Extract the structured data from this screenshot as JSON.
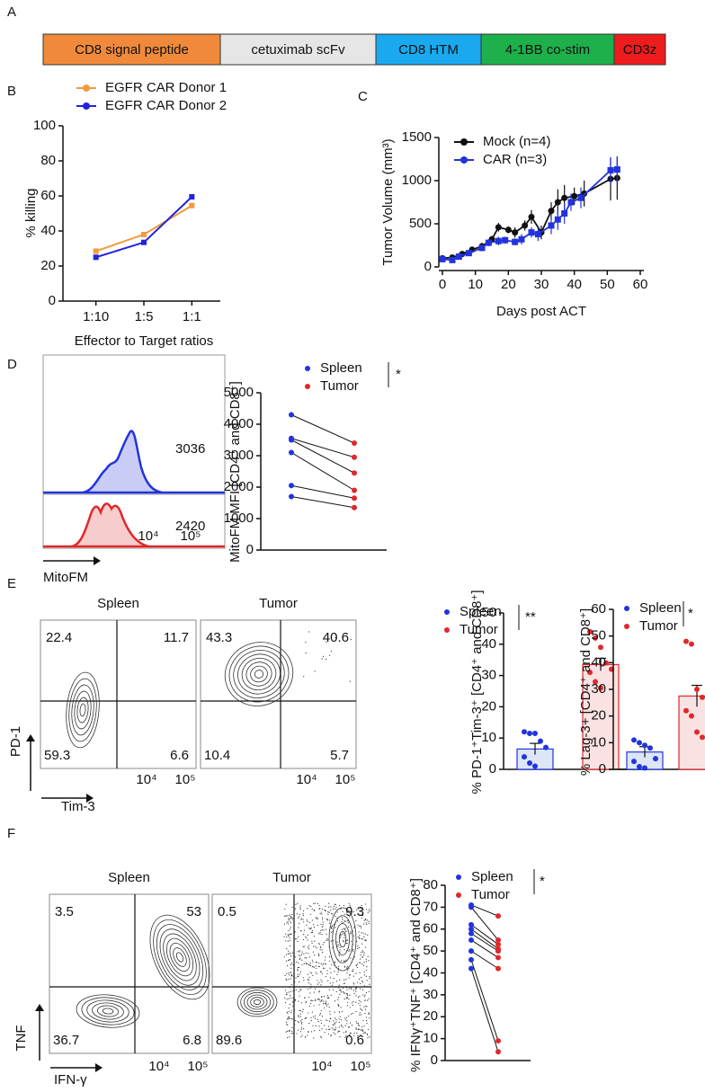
{
  "panel_labels": [
    "A",
    "B",
    "C",
    "D",
    "E",
    "F"
  ],
  "construct": {
    "segments": [
      {
        "label": "CD8 signal peptide",
        "color": "#f08a3a"
      },
      {
        "label": "cetuximab scFv",
        "color": "#e6e6e6"
      },
      {
        "label": "CD8 HTM",
        "color": "#1aa9ee"
      },
      {
        "label": "4-1BB co-stim",
        "color": "#1db04b"
      },
      {
        "label": "CD3z",
        "color": "#ee1c1c"
      }
    ]
  },
  "flow": {
    "histogram": {
      "x_label": "MitoFM",
      "ticks": [
        "10⁴",
        "10⁵"
      ],
      "values": [
        3036,
        2420
      ]
    },
    "pd1_tim3": {
      "y_label": "PD-1",
      "x_label": "Tim-3",
      "ticks": [
        "10⁴",
        "10⁵"
      ],
      "plots": [
        {
          "title": "Spleen",
          "quadrants": [
            22.4,
            11.7,
            59.3,
            6.6
          ]
        },
        {
          "title": "Tumor",
          "quadrants": [
            43.3,
            40.6,
            10.4,
            5.7
          ]
        }
      ]
    },
    "tnf_ifng": {
      "y_label": "TNF",
      "x_label": "IFN-γ",
      "ticks": [
        "10⁴",
        "10⁵"
      ],
      "plots": [
        {
          "title": "Spleen",
          "quadrants": [
            3.5,
            53,
            36.7,
            6.8
          ]
        },
        {
          "title": "Tumor",
          "quadrants": [
            0.5,
            9.3,
            89.6,
            0.6
          ]
        }
      ]
    }
  },
  "chart_data": [
    {
      "type": "line",
      "y_label": "% killing",
      "x_label": "Effector to Target ratios",
      "categories": [
        "1:10",
        "1:5",
        "1:1"
      ],
      "ylim": [
        0,
        100
      ],
      "yticks": [
        0,
        20,
        40,
        60,
        80,
        100
      ],
      "legend": "top",
      "series": [
        {
          "name": "EGFR CAR Donor 1",
          "color": "#f39a3d",
          "values": [
            28.5,
            38,
            54.5
          ]
        },
        {
          "name": "EGFR CAR Donor 2",
          "color": "#2222dd",
          "values": [
            25,
            33.5,
            59.5
          ]
        }
      ]
    },
    {
      "type": "scatterline",
      "y_label": "Tumor Volume (mm³)",
      "x_label": "Days post ACT",
      "xlim": [
        0,
        60
      ],
      "xticks": [
        0,
        10,
        20,
        30,
        40,
        50,
        60
      ],
      "ylim": [
        0,
        1500
      ],
      "yticks": [
        0,
        500,
        1000,
        1500
      ],
      "legend": "upper left",
      "series": [
        {
          "name": "Mock (n=4)",
          "color": "#111111",
          "marker": "circle",
          "x": [
            0,
            3,
            6,
            9,
            12,
            15,
            17,
            20,
            22,
            25,
            27,
            30,
            33,
            35,
            37,
            40,
            43,
            51,
            53
          ],
          "values": [
            100,
            110,
            150,
            200,
            240,
            320,
            460,
            430,
            400,
            480,
            580,
            400,
            650,
            750,
            800,
            820,
            850,
            1020,
            1030
          ],
          "errors": [
            20,
            20,
            30,
            30,
            40,
            40,
            50,
            40,
            60,
            60,
            80,
            80,
            100,
            150,
            150,
            100,
            150,
            250,
            250
          ]
        },
        {
          "name": "CAR (n=3)",
          "color": "#2233dd",
          "marker": "square",
          "x": [
            0,
            3,
            5,
            8,
            12,
            14,
            17,
            19,
            22,
            24,
            27,
            29,
            33,
            35,
            37,
            39,
            42,
            51,
            53
          ],
          "values": [
            90,
            80,
            120,
            160,
            220,
            280,
            300,
            310,
            290,
            320,
            400,
            380,
            480,
            550,
            620,
            750,
            800,
            1120,
            1130
          ],
          "errors": [
            20,
            20,
            30,
            30,
            30,
            40,
            50,
            40,
            40,
            60,
            60,
            80,
            100,
            120,
            120,
            100,
            120,
            150,
            150
          ]
        }
      ]
    },
    {
      "type": "paired",
      "y_label": "MitoFM MFI [CD4⁺ and CD8⁺]",
      "significance": "*",
      "ylim": [
        0,
        5000
      ],
      "yticks": [
        0,
        1000,
        2000,
        3000,
        4000,
        5000
      ],
      "series": [
        {
          "name": "Spleen",
          "color": "#2233dd",
          "values": [
            4300,
            3550,
            3500,
            3100,
            2050,
            1700
          ]
        },
        {
          "name": "Tumor",
          "color": "#e0282a",
          "values": [
            3400,
            2950,
            2450,
            1900,
            1650,
            1350
          ]
        }
      ]
    },
    {
      "type": "dotbar",
      "y_label": "% PD-1⁺Tim-3⁺ [CD4⁺ and CD8⁺]",
      "significance": "**",
      "ylim": [
        0,
        50
      ],
      "yticks": [
        0,
        10,
        20,
        30,
        40,
        50
      ],
      "series": [
        {
          "name": "Spleen",
          "color": "#2233dd",
          "fill": "#dce6f7",
          "mean": 6.5,
          "error": 1.8,
          "points": [
            12,
            11.5,
            11.5,
            9,
            7,
            4,
            2,
            1
          ]
        },
        {
          "name": "Tumor",
          "color": "#e0282a",
          "fill": "#fbe2e2",
          "mean": 33.5,
          "error": 2,
          "points": [
            44,
            42,
            39,
            34,
            32,
            31,
            28,
            26
          ]
        }
      ]
    },
    {
      "type": "dotbar",
      "y_label": "% Lag-3+ [CD4⁺ and CD8⁺]",
      "significance": "*",
      "ylim": [
        0,
        60
      ],
      "yticks": [
        0,
        10,
        20,
        30,
        40,
        50,
        60
      ],
      "series": [
        {
          "name": "Spleen",
          "color": "#2233dd",
          "fill": "#dce6f7",
          "mean": 6.5,
          "error": 2,
          "points": [
            11,
            10,
            9,
            8,
            4,
            3,
            1,
            0.5
          ]
        },
        {
          "name": "Tumor",
          "color": "#e0282a",
          "fill": "#fbe2e2",
          "mean": 27.5,
          "error": 4,
          "points": [
            48,
            47,
            30,
            27,
            24,
            22,
            20,
            14,
            12
          ]
        }
      ]
    },
    {
      "type": "paired",
      "y_label": "% IFNγ⁺TNF⁺ [CD4⁺ and CD8⁺]",
      "significance": "*",
      "ylim": [
        0,
        80
      ],
      "yticks": [
        0,
        10,
        20,
        30,
        40,
        50,
        60,
        70,
        80
      ],
      "series": [
        {
          "name": "Spleen",
          "color": "#2233dd",
          "values": [
            71,
            70,
            62,
            60,
            58,
            55,
            50,
            46,
            42
          ]
        },
        {
          "name": "Tumor",
          "color": "#e0282a",
          "values": [
            66,
            55,
            53,
            51,
            50,
            47,
            42,
            9,
            4
          ]
        }
      ]
    }
  ]
}
